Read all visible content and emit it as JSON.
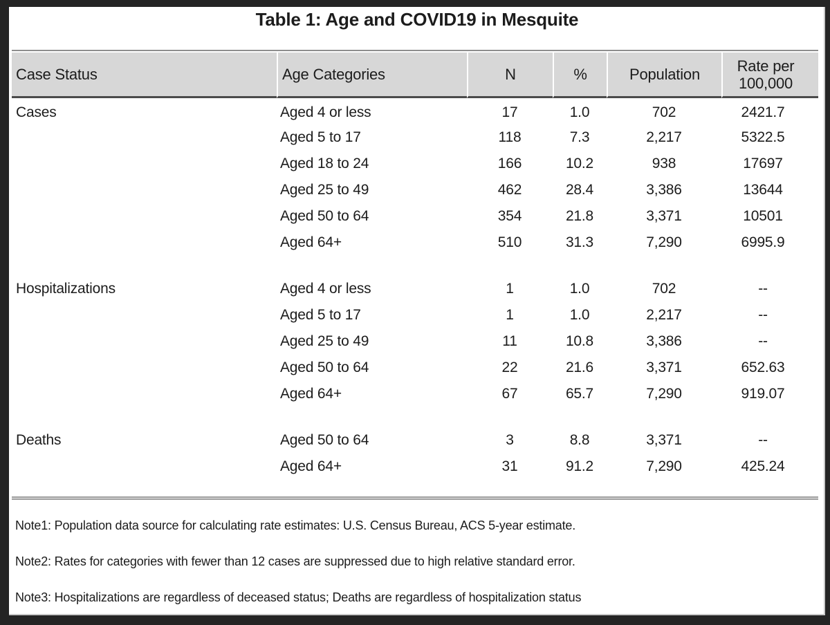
{
  "title": "Table 1: Age and COVID19 in Mesquite",
  "table": {
    "columns": [
      "Case Status",
      "Age Categories",
      "N",
      "%",
      "Population",
      "Rate per 100,000"
    ],
    "sections": [
      {
        "status": "Cases",
        "rows": [
          {
            "age": "Aged 4 or less",
            "n": "17",
            "pct": "1.0",
            "population": "702",
            "rate": "2421.7"
          },
          {
            "age": "Aged 5 to 17",
            "n": "118",
            "pct": "7.3",
            "population": "2,217",
            "rate": "5322.5"
          },
          {
            "age": "Aged 18 to 24",
            "n": "166",
            "pct": "10.2",
            "population": "938",
            "rate": "17697"
          },
          {
            "age": "Aged 25 to 49",
            "n": "462",
            "pct": "28.4",
            "population": "3,386",
            "rate": "13644"
          },
          {
            "age": "Aged 50 to 64",
            "n": "354",
            "pct": "21.8",
            "population": "3,371",
            "rate": "10501"
          },
          {
            "age": "Aged 64+",
            "n": "510",
            "pct": "31.3",
            "population": "7,290",
            "rate": "6995.9"
          }
        ]
      },
      {
        "status": "Hospitalizations",
        "rows": [
          {
            "age": "Aged 4 or less",
            "n": "1",
            "pct": "1.0",
            "population": "702",
            "rate": "--"
          },
          {
            "age": "Aged 5 to 17",
            "n": "1",
            "pct": "1.0",
            "population": "2,217",
            "rate": "--"
          },
          {
            "age": "Aged 25 to 49",
            "n": "11",
            "pct": "10.8",
            "population": "3,386",
            "rate": "--"
          },
          {
            "age": "Aged 50 to 64",
            "n": "22",
            "pct": "21.6",
            "population": "3,371",
            "rate": "652.63"
          },
          {
            "age": "Aged 64+",
            "n": "67",
            "pct": "65.7",
            "population": "7,290",
            "rate": "919.07"
          }
        ]
      },
      {
        "status": "Deaths",
        "rows": [
          {
            "age": "Aged 50 to 64",
            "n": "3",
            "pct": "8.8",
            "population": "3,371",
            "rate": "--"
          },
          {
            "age": "Aged 64+",
            "n": "31",
            "pct": "91.2",
            "population": "7,290",
            "rate": "425.24"
          }
        ]
      }
    ]
  },
  "notes": [
    "Note1: Population data source for calculating rate estimates: U.S. Census Bureau, ACS 5-year estimate.",
    "Note2: Rates for categories with fewer than 12 cases are suppressed due to high relative standard error.",
    "Note3: Hospitalizations are regardless of deceased status; Deaths are regardless of hospitalization status"
  ]
}
